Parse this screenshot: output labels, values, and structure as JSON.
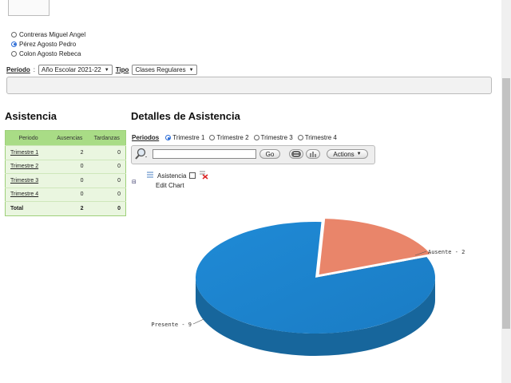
{
  "students": [
    {
      "name": "Contreras Miguel Angel",
      "selected": false
    },
    {
      "name": "Pérez Agosto Pedro",
      "selected": true
    },
    {
      "name": "Colon Agosto Rebeca",
      "selected": false
    }
  ],
  "filters": {
    "periodo_label": "Período",
    "periodo_value": "Año Escolar 2021-22",
    "tipo_label": "Tipo",
    "tipo_value": "Clases Regulares"
  },
  "asistencia": {
    "title": "Asistencia",
    "headers": [
      "Periodo",
      "Ausencias",
      "Tardanzas"
    ],
    "rows": [
      {
        "periodo": "Trimestre 1",
        "ausencias": "2",
        "tardanzas": "0"
      },
      {
        "periodo": "Trimestre 2",
        "ausencias": "0",
        "tardanzas": "0"
      },
      {
        "periodo": "Trimestre 3",
        "ausencias": "0",
        "tardanzas": "0"
      },
      {
        "periodo": "Trimestre 4",
        "ausencias": "0",
        "tardanzas": "0"
      }
    ],
    "total": {
      "label": "Total",
      "ausencias": "2",
      "tardanzas": "0"
    }
  },
  "detalles": {
    "title": "Detalles de Asistencia",
    "periods_label": "Periodos",
    "periods": [
      {
        "label": "Trimestre 1",
        "selected": true
      },
      {
        "label": "Trimestre 2",
        "selected": false
      },
      {
        "label": "Trimestre 3",
        "selected": false
      },
      {
        "label": "Trimestre 4",
        "selected": false
      }
    ],
    "search_placeholder": "",
    "go_label": "Go",
    "actions_label": "Actions",
    "tree_label": "Asistencia",
    "edit_chart_label": "Edit Chart"
  },
  "chart_data": {
    "type": "pie",
    "slices": [
      {
        "label": "Presente",
        "value": 9,
        "color": "#1e88d0"
      },
      {
        "label": "Ausente",
        "value": 2,
        "color": "#e9856a"
      }
    ],
    "data_labels": [
      "Presente - 9",
      "Ausente - 2"
    ]
  },
  "colors": {
    "accent": "#2a6bd6",
    "table_header": "#a9dc86",
    "table_bg": "#eaf6e0"
  }
}
